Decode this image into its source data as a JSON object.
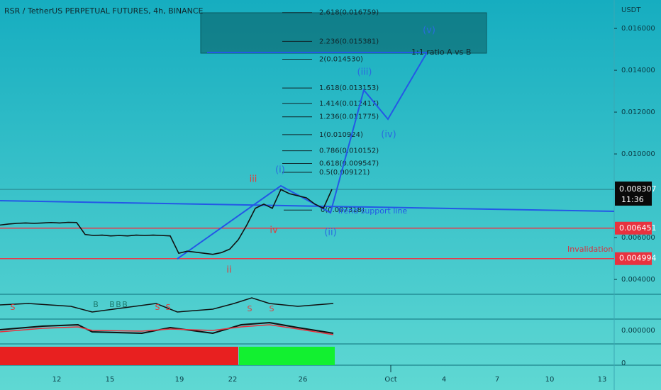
{
  "header": {
    "title": "RSR / TetherUS PERPETUAL FUTURES, 4h, BINANCE",
    "currency": "USDT"
  },
  "price_axis": {
    "ylim": [
      0.00329,
      0.01736
    ],
    "ticks": [
      {
        "value": 0.016,
        "label": "0.016000"
      },
      {
        "value": 0.014,
        "label": "0.014000"
      },
      {
        "value": 0.012,
        "label": "0.012000"
      },
      {
        "value": 0.01,
        "label": "0.010000"
      },
      {
        "value": 0.006,
        "label": "0.006000"
      },
      {
        "value": 0.004,
        "label": "0.004000"
      }
    ],
    "indicator_ticks": [
      "0.000000",
      "0"
    ]
  },
  "time_axis": [
    "12",
    "15",
    "19",
    "22",
    "26",
    "Oct",
    "4",
    "7",
    "10",
    "13"
  ],
  "price_tags": [
    {
      "value": 0.008307,
      "label": "0.008307",
      "countdown": "11:36"
    },
    {
      "value": 0.006451,
      "label": "0.006451"
    },
    {
      "value": 0.004994,
      "label": "0.004994"
    }
  ],
  "fib_levels": [
    {
      "label": "2.618(0.016759)",
      "price": 0.016759
    },
    {
      "label": "2.236(0.015381)",
      "price": 0.015381
    },
    {
      "label": "2(0.014530)",
      "price": 0.01453
    },
    {
      "label": "1.618(0.013153)",
      "price": 0.013153
    },
    {
      "label": "1.414(0.012417)",
      "price": 0.012417
    },
    {
      "label": "1.236(0.011775)",
      "price": 0.011775
    },
    {
      "label": "1(0.010924)",
      "price": 0.010924
    },
    {
      "label": "0.786(0.010152)",
      "price": 0.010152
    },
    {
      "label": "0.618(0.009547)",
      "price": 0.009547
    },
    {
      "label": "0.5(0.009121)",
      "price": 0.009121
    },
    {
      "label": "0(0.007318)",
      "price": 0.007318
    }
  ],
  "wave_labels": {
    "red": [
      "iii",
      "iv",
      "ii"
    ],
    "blue": [
      "(i)",
      "(ii)",
      "(iii)",
      "(iv)",
      "(v)"
    ]
  },
  "annotations": {
    "ratio": "1:1 ratio A vs B",
    "trend": "Trend support line",
    "invalidation": "Invalidation"
  },
  "indicator_letters": [
    "S",
    "B",
    "B",
    "B",
    "B",
    "S",
    "S",
    "S",
    "S"
  ],
  "price_trace": [
    0.0066,
    0.00665,
    0.00668,
    0.0067,
    0.00668,
    0.0067,
    0.00672,
    0.0067,
    0.00673,
    0.00672,
    0.00615,
    0.0061,
    0.00612,
    0.00608,
    0.0061,
    0.00608,
    0.00612,
    0.0061,
    0.00612,
    0.0061,
    0.00608,
    0.00525,
    0.00535,
    0.0053,
    0.00525,
    0.0052,
    0.00528,
    0.00545,
    0.0059,
    0.0066,
    0.0074,
    0.0076,
    0.0074,
    0.0083,
    0.0081,
    0.008,
    0.0079,
    0.0076,
    0.0074,
    0.00831
  ]
}
